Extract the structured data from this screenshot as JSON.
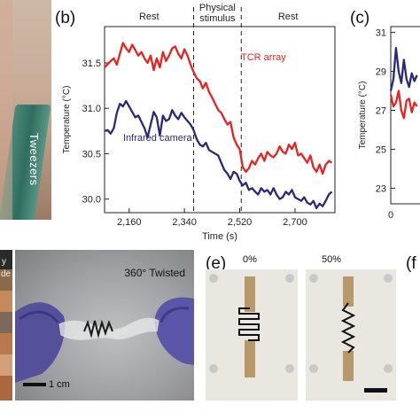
{
  "panels": {
    "b_letter": "(b)",
    "c_letter": "(c)",
    "e_letter": "(e)",
    "f_letter": "(f"
  },
  "photo_a": {
    "label": "Tweezers"
  },
  "photo_d": {
    "label": "360° Twisted",
    "scale": "1 cm",
    "left_fragment_1": "y",
    "left_fragment_2": "de"
  },
  "photo_e": {
    "label_left": "0%",
    "label_right": "50%"
  },
  "chart_data": [
    {
      "type": "line",
      "panel": "b",
      "title": "",
      "xlabel": "Time (s)",
      "ylabel": "Temperature (°C)",
      "xlim": [
        2080,
        2830
      ],
      "ylim": [
        29.85,
        31.9
      ],
      "xticks": [
        2160,
        2340,
        2520,
        2700
      ],
      "xtick_labels": [
        "2,160",
        "2,340",
        "2,520",
        "2,700"
      ],
      "yticks": [
        30.0,
        30.5,
        31.0,
        31.5
      ],
      "ytick_labels": [
        "30.0",
        "30.5",
        "31.0",
        "31.5"
      ],
      "phase_labels": [
        "Rest",
        "Physical",
        "stimulus",
        "Rest"
      ],
      "phase_boundaries": [
        2370,
        2525
      ],
      "series": [
        {
          "name": "TCR array",
          "color": "#e8221e",
          "x": [
            2080,
            2100,
            2110,
            2120,
            2130,
            2140,
            2150,
            2160,
            2170,
            2180,
            2190,
            2200,
            2210,
            2220,
            2230,
            2240,
            2250,
            2260,
            2270,
            2280,
            2290,
            2300,
            2310,
            2320,
            2330,
            2340,
            2350,
            2360,
            2370,
            2380,
            2390,
            2400,
            2410,
            2420,
            2430,
            2440,
            2450,
            2460,
            2470,
            2480,
            2490,
            2500,
            2510,
            2520,
            2530,
            2540,
            2550,
            2560,
            2570,
            2580,
            2590,
            2600,
            2610,
            2620,
            2630,
            2640,
            2650,
            2660,
            2670,
            2680,
            2690,
            2700,
            2710,
            2720,
            2730,
            2740,
            2750,
            2760,
            2770,
            2780,
            2790,
            2800,
            2810,
            2820
          ],
          "y": [
            31.45,
            31.52,
            31.55,
            31.48,
            31.6,
            31.72,
            31.66,
            31.62,
            31.7,
            31.64,
            31.58,
            31.62,
            31.55,
            31.5,
            31.58,
            31.42,
            31.55,
            31.45,
            31.62,
            31.52,
            31.58,
            31.66,
            31.68,
            31.6,
            31.55,
            31.65,
            31.58,
            31.48,
            31.4,
            31.33,
            31.3,
            31.22,
            31.28,
            31.18,
            31.12,
            31.05,
            30.98,
            30.95,
            30.88,
            30.82,
            30.85,
            30.68,
            30.6,
            30.55,
            30.35,
            30.3,
            30.34,
            30.42,
            30.38,
            30.45,
            30.5,
            30.42,
            30.52,
            30.48,
            30.46,
            30.5,
            30.58,
            30.52,
            30.5,
            30.6,
            30.55,
            30.62,
            30.48,
            30.5,
            30.45,
            30.4,
            30.48,
            30.35,
            30.3,
            30.38,
            30.28,
            30.38,
            30.42,
            30.4
          ]
        },
        {
          "name": "Infrared camera",
          "color": "#27297a",
          "x": [
            2080,
            2090,
            2100,
            2110,
            2120,
            2130,
            2140,
            2150,
            2160,
            2170,
            2180,
            2190,
            2200,
            2210,
            2220,
            2230,
            2240,
            2250,
            2260,
            2270,
            2280,
            2290,
            2300,
            2310,
            2320,
            2330,
            2340,
            2350,
            2360,
            2370,
            2380,
            2390,
            2400,
            2410,
            2420,
            2430,
            2440,
            2450,
            2460,
            2470,
            2480,
            2490,
            2500,
            2510,
            2520,
            2530,
            2540,
            2550,
            2560,
            2570,
            2580,
            2590,
            2600,
            2610,
            2620,
            2630,
            2640,
            2650,
            2660,
            2670,
            2680,
            2690,
            2700,
            2710,
            2720,
            2730,
            2740,
            2750,
            2760,
            2770,
            2780,
            2790,
            2800,
            2810,
            2820
          ],
          "y": [
            30.75,
            30.76,
            30.72,
            30.78,
            30.95,
            31.05,
            31.02,
            31.08,
            31.02,
            30.96,
            30.9,
            30.92,
            30.85,
            30.78,
            30.68,
            30.82,
            30.96,
            30.9,
            30.7,
            30.92,
            30.86,
            30.88,
            30.98,
            30.92,
            30.88,
            30.95,
            30.9,
            30.86,
            30.82,
            30.76,
            30.66,
            30.6,
            30.58,
            30.62,
            30.54,
            30.52,
            30.5,
            30.48,
            30.4,
            30.32,
            30.28,
            30.22,
            30.3,
            30.28,
            30.2,
            30.15,
            30.18,
            30.1,
            30.12,
            30.08,
            30.05,
            30.12,
            30.08,
            30.1,
            30.05,
            30.12,
            30.05,
            30.0,
            30.02,
            30.08,
            30.05,
            30.1,
            30.02,
            30.0,
            29.98,
            30.02,
            29.96,
            29.94,
            29.98,
            29.9,
            29.95,
            29.92,
            29.98,
            30.05,
            30.08
          ]
        }
      ]
    },
    {
      "type": "line",
      "panel": "c",
      "title": "",
      "xlabel": "",
      "ylabel": "Temperature (°C)",
      "xlim": [
        0,
        80
      ],
      "ylim": [
        22.2,
        31.3
      ],
      "xticks": [
        0
      ],
      "xtick_labels": [
        "0"
      ],
      "yticks": [
        23,
        25,
        27,
        29,
        31
      ],
      "ytick_labels": [
        "23",
        "25",
        "27",
        "29",
        "31"
      ],
      "series": [
        {
          "name": "",
          "color": "#27297a",
          "x": [
            0,
            3,
            6,
            9,
            12,
            15,
            18,
            21,
            24,
            27,
            30
          ],
          "y": [
            28.0,
            28.6,
            30.2,
            29.0,
            28.4,
            29.6,
            28.6,
            28.2,
            28.9,
            28.5,
            28.8
          ]
        },
        {
          "name": "",
          "color": "#e8221e",
          "x": [
            0,
            3,
            6,
            9,
            12,
            15,
            18,
            21,
            24,
            27,
            30
          ],
          "y": [
            27.8,
            27.2,
            27.4,
            28.0,
            27.0,
            26.6,
            27.5,
            27.6,
            26.9,
            27.4,
            27.2
          ]
        }
      ]
    }
  ]
}
